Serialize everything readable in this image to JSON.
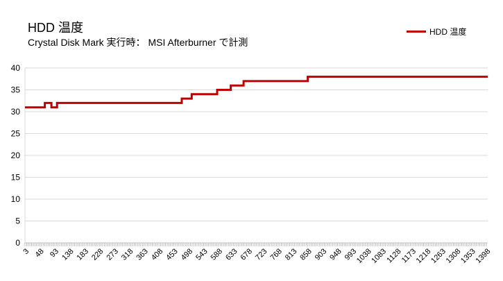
{
  "chart_data": {
    "type": "line",
    "title": "HDD 温度",
    "subtitle": "Crystal Disk Mark 実行時： MSI Afterburner で計測",
    "xlabel": "",
    "ylabel": "",
    "ylim": [
      0,
      40
    ],
    "yticks": [
      0,
      5,
      10,
      15,
      20,
      25,
      30,
      35,
      40
    ],
    "xlim": [
      0,
      1399
    ],
    "xticks": [
      3,
      48,
      93,
      138,
      183,
      228,
      273,
      318,
      363,
      408,
      453,
      498,
      543,
      588,
      633,
      678,
      723,
      768,
      813,
      858,
      903,
      948,
      993,
      1038,
      1083,
      1128,
      1173,
      1218,
      1263,
      1308,
      1353,
      1398
    ],
    "grid": true,
    "legend_position": "top-right",
    "series": [
      {
        "name": "HDD 温度",
        "color": "#c00000",
        "step": true,
        "points": [
          [
            0,
            31
          ],
          [
            60,
            31
          ],
          [
            60,
            32
          ],
          [
            80,
            32
          ],
          [
            80,
            31
          ],
          [
            97,
            31
          ],
          [
            97,
            32
          ],
          [
            474,
            32
          ],
          [
            474,
            33
          ],
          [
            504,
            33
          ],
          [
            504,
            34
          ],
          [
            581,
            34
          ],
          [
            581,
            35
          ],
          [
            622,
            35
          ],
          [
            622,
            36
          ],
          [
            661,
            36
          ],
          [
            661,
            37
          ],
          [
            855,
            37
          ],
          [
            855,
            38
          ],
          [
            1399,
            38
          ]
        ]
      }
    ]
  }
}
